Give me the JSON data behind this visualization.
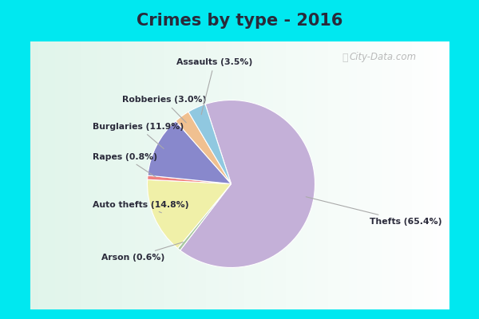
{
  "title": "Crimes by type - 2016",
  "slices": [
    {
      "label": "Thefts",
      "pct": 65.4,
      "pct_str": "65.4%",
      "color": "#c4b0d8"
    },
    {
      "label": "Arson",
      "pct": 0.6,
      "pct_str": "0.6%",
      "color": "#a8c8a0"
    },
    {
      "label": "Auto thefts",
      "pct": 14.8,
      "pct_str": "14.8%",
      "color": "#f0f0a8"
    },
    {
      "label": "Rapes",
      "pct": 0.8,
      "pct_str": "0.8%",
      "color": "#f08080"
    },
    {
      "label": "Burglaries",
      "pct": 11.9,
      "pct_str": "11.9%",
      "color": "#8888cc"
    },
    {
      "label": "Robberies",
      "pct": 3.0,
      "pct_str": "3.0%",
      "color": "#f0c090"
    },
    {
      "label": "Assaults",
      "pct": 3.5,
      "pct_str": "3.5%",
      "color": "#90c8e0"
    }
  ],
  "startangle": 108,
  "title_color": "#2a2a3a",
  "label_color": "#2a2a3a",
  "border_color": "#00e8f0",
  "bg_color_inner": "#e8f4ec",
  "watermark": "City-Data.com",
  "border_width": 10
}
